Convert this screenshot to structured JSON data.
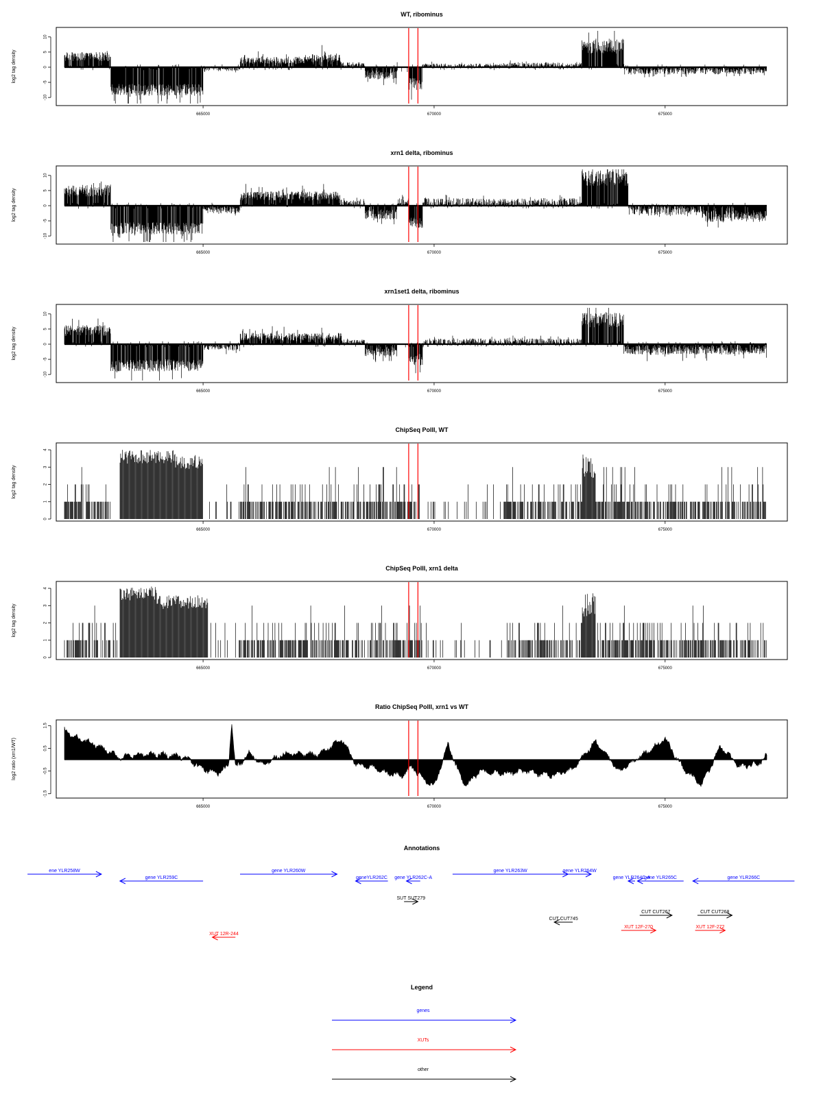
{
  "chart_data": [
    {
      "type": "bar",
      "title": "WT, ribominus",
      "ylabel": "log2 tag density",
      "xlim": [
        662000,
        677200
      ],
      "ylim": [
        -12,
        12
      ],
      "yticks": [
        -10,
        -5,
        0,
        5,
        10
      ],
      "xticks": [
        665000,
        670000,
        675000
      ],
      "xticklabels": [
        "665000",
        "670000",
        "675000"
      ],
      "ytick_labels": [
        "-10",
        "-5",
        "0",
        "5",
        "10"
      ],
      "vlines": [
        669450,
        669650
      ],
      "segments": [
        {
          "x0": 662000,
          "x1": 663000,
          "level": 3.5,
          "var": 1.5
        },
        {
          "x0": 663000,
          "x1": 665000,
          "level": -7.5,
          "var": 2.0
        },
        {
          "x0": 665000,
          "x1": 665800,
          "level": -0.5,
          "var": 0.8
        },
        {
          "x0": 665800,
          "x1": 667300,
          "level": 2.3,
          "var": 1.2
        },
        {
          "x0": 667300,
          "x1": 668000,
          "level": 3.0,
          "var": 1.5
        },
        {
          "x0": 668000,
          "x1": 668500,
          "level": 0.8,
          "var": 0.8
        },
        {
          "x0": 668500,
          "x1": 669200,
          "level": -2.5,
          "var": 1.5
        },
        {
          "x0": 669200,
          "x1": 669450,
          "level": 0.0,
          "var": 0.3
        },
        {
          "x0": 669450,
          "x1": 669750,
          "level": -5.5,
          "var": 2.0
        },
        {
          "x0": 669750,
          "x1": 671500,
          "level": 0.4,
          "var": 0.8
        },
        {
          "x0": 671500,
          "x1": 673200,
          "level": 0.5,
          "var": 1.0
        },
        {
          "x0": 673200,
          "x1": 674100,
          "level": 7.0,
          "var": 2.5
        },
        {
          "x0": 674100,
          "x1": 677200,
          "level": -1.2,
          "var": 1.2
        }
      ]
    },
    {
      "type": "bar",
      "title": "xrn1 delta, ribominus",
      "ylabel": "log2 tag density",
      "xlim": [
        662000,
        677200
      ],
      "ylim": [
        -12,
        12
      ],
      "yticks": [
        -10,
        -5,
        0,
        5,
        10
      ],
      "xticks": [
        665000,
        670000,
        675000
      ],
      "xticklabels": [
        "665000",
        "670000",
        "675000"
      ],
      "ytick_labels": [
        "-10",
        "-5",
        "0",
        "5",
        "10"
      ],
      "vlines": [
        669450,
        669650
      ],
      "segments": [
        {
          "x0": 662000,
          "x1": 663000,
          "level": 5.0,
          "var": 2.0
        },
        {
          "x0": 663000,
          "x1": 665000,
          "level": -7.5,
          "var": 2.0
        },
        {
          "x0": 665000,
          "x1": 665800,
          "level": -1.5,
          "var": 1.2
        },
        {
          "x0": 665800,
          "x1": 668000,
          "level": 3.2,
          "var": 1.5
        },
        {
          "x0": 668000,
          "x1": 668500,
          "level": 0.8,
          "var": 1.0
        },
        {
          "x0": 668500,
          "x1": 669200,
          "level": -3.0,
          "var": 1.8
        },
        {
          "x0": 669200,
          "x1": 669450,
          "level": 1.0,
          "var": 1.2
        },
        {
          "x0": 669450,
          "x1": 669750,
          "level": -5.5,
          "var": 2.0
        },
        {
          "x0": 669750,
          "x1": 673200,
          "level": 1.0,
          "var": 1.5
        },
        {
          "x0": 673200,
          "x1": 674200,
          "level": 9.0,
          "var": 2.5
        },
        {
          "x0": 674200,
          "x1": 675800,
          "level": -1.5,
          "var": 1.8
        },
        {
          "x0": 675800,
          "x1": 677200,
          "level": -3.5,
          "var": 2.0
        }
      ]
    },
    {
      "type": "bar",
      "title": "xrn1set1 delta, ribominus",
      "ylabel": "log2 tag density",
      "xlim": [
        662000,
        677200
      ],
      "ylim": [
        -12,
        12
      ],
      "yticks": [
        -10,
        -5,
        0,
        5,
        10
      ],
      "xticks": [
        665000,
        670000,
        675000
      ],
      "xticklabels": [
        "665000",
        "670000",
        "675000"
      ],
      "ytick_labels": [
        "-10",
        "-5",
        "0",
        "5",
        "10"
      ],
      "vlines": [
        669450,
        669650
      ],
      "segments": [
        {
          "x0": 662000,
          "x1": 663000,
          "level": 4.5,
          "var": 1.8
        },
        {
          "x0": 663000,
          "x1": 665000,
          "level": -7.0,
          "var": 2.0
        },
        {
          "x0": 665000,
          "x1": 665800,
          "level": -1.0,
          "var": 1.0
        },
        {
          "x0": 665800,
          "x1": 668000,
          "level": 2.5,
          "var": 1.3
        },
        {
          "x0": 668000,
          "x1": 668500,
          "level": 0.8,
          "var": 0.8
        },
        {
          "x0": 668500,
          "x1": 669200,
          "level": -2.5,
          "var": 1.5
        },
        {
          "x0": 669200,
          "x1": 669450,
          "level": 0.0,
          "var": 0.3
        },
        {
          "x0": 669450,
          "x1": 669750,
          "level": -5.0,
          "var": 2.0
        },
        {
          "x0": 669750,
          "x1": 673200,
          "level": 0.7,
          "var": 1.2
        },
        {
          "x0": 673200,
          "x1": 674100,
          "level": 8.0,
          "var": 2.5
        },
        {
          "x0": 674100,
          "x1": 677200,
          "level": -2.0,
          "var": 1.5
        }
      ]
    },
    {
      "type": "bar",
      "title": "ChipSeq PolII, WT",
      "ylabel": "log2 tag density",
      "xlim": [
        662000,
        677200
      ],
      "ylim": [
        0,
        4.2
      ],
      "yticks": [
        0,
        1,
        2,
        3,
        4
      ],
      "xticks": [
        665000,
        670000,
        675000
      ],
      "xticklabels": [
        "665000",
        "670000",
        "675000"
      ],
      "ytick_labels": [
        "0",
        "1",
        "2",
        "3",
        "4"
      ],
      "vlines": [
        669450,
        669650
      ],
      "segments": [
        {
          "x0": 662000,
          "x1": 663000,
          "level": 1.3,
          "var": 0.6
        },
        {
          "x0": 663000,
          "x1": 663200,
          "level": 0.0,
          "var": 0.0
        },
        {
          "x0": 663200,
          "x1": 664400,
          "level": 3.6,
          "var": 0.4
        },
        {
          "x0": 664400,
          "x1": 665000,
          "level": 3.3,
          "var": 0.4
        },
        {
          "x0": 665000,
          "x1": 665800,
          "level": 0.3,
          "var": 0.5
        },
        {
          "x0": 665800,
          "x1": 668000,
          "level": 1.1,
          "var": 0.7
        },
        {
          "x0": 668000,
          "x1": 669700,
          "level": 1.2,
          "var": 0.6
        },
        {
          "x0": 669700,
          "x1": 671500,
          "level": 0.15,
          "var": 0.3
        },
        {
          "x0": 671500,
          "x1": 673200,
          "level": 1.1,
          "var": 0.6
        },
        {
          "x0": 673200,
          "x1": 673500,
          "level": 3.0,
          "var": 0.8
        },
        {
          "x0": 673500,
          "x1": 677200,
          "level": 1.1,
          "var": 0.6
        }
      ]
    },
    {
      "type": "bar",
      "title": "ChipSeq PolII, xrn1 delta",
      "ylabel": "log2 tag density",
      "xlim": [
        662000,
        677200
      ],
      "ylim": [
        0,
        4.2
      ],
      "yticks": [
        0,
        1,
        2,
        3,
        4
      ],
      "xticks": [
        665000,
        670000,
        675000
      ],
      "xticklabels": [
        "665000",
        "670000",
        "675000"
      ],
      "ytick_labels": [
        "0",
        "1",
        "2",
        "3",
        "4"
      ],
      "vlines": [
        669450,
        669650
      ],
      "segments": [
        {
          "x0": 662000,
          "x1": 663000,
          "level": 1.2,
          "var": 0.6
        },
        {
          "x0": 663000,
          "x1": 663200,
          "level": 0.2,
          "var": 0.3
        },
        {
          "x0": 663200,
          "x1": 664000,
          "level": 3.7,
          "var": 0.4
        },
        {
          "x0": 664000,
          "x1": 665100,
          "level": 3.2,
          "var": 0.4
        },
        {
          "x0": 665100,
          "x1": 665800,
          "level": 0.2,
          "var": 0.3
        },
        {
          "x0": 665800,
          "x1": 668000,
          "level": 1.1,
          "var": 0.6
        },
        {
          "x0": 668000,
          "x1": 669700,
          "level": 1.1,
          "var": 0.6
        },
        {
          "x0": 669700,
          "x1": 671600,
          "level": 0.1,
          "var": 0.2
        },
        {
          "x0": 671600,
          "x1": 673200,
          "level": 0.8,
          "var": 0.5
        },
        {
          "x0": 673200,
          "x1": 673500,
          "level": 3.0,
          "var": 0.8
        },
        {
          "x0": 673500,
          "x1": 677200,
          "level": 0.9,
          "var": 0.5
        }
      ]
    },
    {
      "type": "area",
      "title": "Ratio ChipSeq PolII, xrn1 vs WT",
      "ylabel": "log2 ratio (xrn1/WT)",
      "xlim": [
        662000,
        677200
      ],
      "ylim": [
        -1.6,
        1.6
      ],
      "yticks": [
        -1.5,
        -0.5,
        0.5,
        1.5
      ],
      "xticks": [
        665000,
        670000,
        675000
      ],
      "xticklabels": [
        "665000",
        "670000",
        "675000"
      ],
      "ytick_labels": [
        "-1.5",
        "-0.5",
        "0.5",
        "1.5"
      ],
      "vlines": [
        669450,
        669650
      ],
      "x": [
        662000,
        662200,
        662500,
        662800,
        663200,
        663600,
        664000,
        664600,
        665000,
        665300,
        665550,
        665620,
        665700,
        666000,
        666300,
        666700,
        667000,
        667500,
        668000,
        668300,
        668600,
        669000,
        669300,
        669500,
        669800,
        670000,
        670300,
        670600,
        670700,
        671000,
        671500,
        672000,
        672500,
        673000,
        673500,
        674000,
        674500,
        675000,
        675400,
        675800,
        676200,
        676600,
        677000,
        677200
      ],
      "y": [
        1.3,
        1.0,
        0.8,
        0.5,
        0.1,
        0.2,
        0.25,
        0.1,
        -0.4,
        -0.6,
        -0.3,
        1.7,
        -0.4,
        0.3,
        -0.2,
        0.2,
        0.25,
        0.2,
        0.9,
        -0.2,
        -0.3,
        -0.6,
        -0.7,
        -0.3,
        -0.9,
        -1.2,
        0.7,
        -0.9,
        -1.1,
        -0.5,
        -0.6,
        -0.5,
        -0.7,
        -0.4,
        0.8,
        -0.5,
        0.2,
        0.9,
        -0.4,
        -1.1,
        0.6,
        -0.3,
        -0.2,
        0.2
      ]
    },
    {
      "type": "table",
      "title": "Annotations",
      "xlim": [
        662000,
        677200
      ],
      "features": [
        {
          "label": "ene YLR258W",
          "x0": 661200,
          "x1": 662800,
          "dir": "right",
          "track": "gene",
          "row": 0
        },
        {
          "label": "gene YLR259C",
          "x0": 663200,
          "x1": 665000,
          "dir": "left",
          "track": "gene",
          "row": 1
        },
        {
          "label": "gene YLR260W",
          "x0": 665800,
          "x1": 667900,
          "dir": "right",
          "track": "gene",
          "row": 0
        },
        {
          "label": "geneYLR262C",
          "x0": 668300,
          "x1": 669000,
          "dir": "left",
          "track": "gene",
          "row": 1
        },
        {
          "label": "gene YLR262C-A",
          "x0": 669400,
          "x1": 669700,
          "dir": "left",
          "track": "gene",
          "row": 1
        },
        {
          "label": "gene YLR263W",
          "x0": 670400,
          "x1": 672900,
          "dir": "right",
          "track": "gene",
          "row": 0
        },
        {
          "label": "gene YLR264W",
          "x0": 672900,
          "x1": 673400,
          "dir": "right",
          "track": "gene",
          "row": 0
        },
        {
          "label": "gene YLR264C-A",
          "x0": 674200,
          "x1": 674350,
          "dir": "left",
          "track": "gene",
          "row": 1
        },
        {
          "label": "gene YLR265C",
          "x0": 674400,
          "x1": 675400,
          "dir": "left",
          "track": "gene",
          "row": 1
        },
        {
          "label": "gene YLR266C",
          "x0": 675600,
          "x1": 677800,
          "dir": "left",
          "track": "gene",
          "row": 1
        },
        {
          "label": "SUT SUT279",
          "x0": 669350,
          "x1": 669650,
          "dir": "right",
          "track": "other",
          "row": 2
        },
        {
          "label": "CUT CUT267",
          "x0": 674450,
          "x1": 675150,
          "dir": "right",
          "track": "other",
          "row": 3
        },
        {
          "label": "CUT CUT268",
          "x0": 675700,
          "x1": 676450,
          "dir": "right",
          "track": "other",
          "row": 3
        },
        {
          "label": "CUT CUT745",
          "x0": 672600,
          "x1": 673000,
          "dir": "left",
          "track": "other",
          "row": 4
        },
        {
          "label": "XUT 12F-270",
          "x0": 674050,
          "x1": 674800,
          "dir": "right",
          "track": "xut",
          "row": 5
        },
        {
          "label": "XUT 12F-272",
          "x0": 675650,
          "x1": 676300,
          "dir": "right",
          "track": "xut",
          "row": 5
        },
        {
          "label": "XUT 12R-244",
          "x0": 665200,
          "x1": 665700,
          "dir": "left",
          "track": "xut",
          "row": 6
        }
      ]
    },
    {
      "type": "table",
      "title": "Legend",
      "entries": [
        {
          "label": "genes",
          "color": "#0000ff"
        },
        {
          "label": "XUTs",
          "color": "#ff0000"
        },
        {
          "label": "other",
          "color": "#000000"
        }
      ]
    }
  ],
  "colors": {
    "gene": "#0000ff",
    "xut": "#ff0000",
    "other": "#000000",
    "bars": "#000000",
    "marker": "#ff0000"
  }
}
